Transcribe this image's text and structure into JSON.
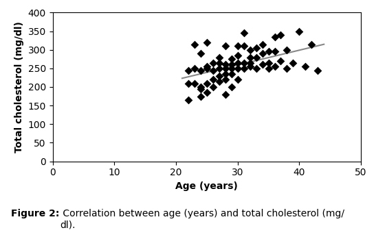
{
  "chart_data": {
    "type": "scatter",
    "x_label": "Age (years)",
    "y_label": "Total cholesterol (mg/dl)",
    "annotations": [
      "Figure 2:",
      " Correlation between age (years) and total cholesterol (mg/\ndl)."
    ],
    "series": [
      {
        "type": "scatter",
        "color": "black",
        "marker": "D",
        "x": [
          22,
          22,
          22,
          23,
          23,
          23,
          24,
          24,
          24,
          24,
          24,
          25,
          25,
          25,
          25,
          25,
          26,
          26,
          26,
          26,
          27,
          27,
          27,
          27,
          27,
          28,
          28,
          28,
          28,
          28,
          28,
          29,
          29,
          29,
          29,
          29,
          30,
          30,
          30,
          30,
          30,
          31,
          31,
          31,
          31,
          32,
          32,
          32,
          32,
          33,
          33,
          33,
          34,
          34,
          34,
          35,
          35,
          35,
          36,
          36,
          36,
          37,
          37,
          38,
          38,
          39,
          40,
          41,
          42,
          43
        ],
        "values": [
          245,
          210,
          165,
          315,
          210,
          250,
          245,
          200,
          195,
          175,
          290,
          255,
          250,
          210,
          185,
          320,
          265,
          245,
          220,
          200,
          265,
          250,
          230,
          215,
          280,
          260,
          250,
          235,
          220,
          180,
          310,
          275,
          260,
          250,
          235,
          200,
          265,
          250,
          220,
          285,
          310,
          265,
          250,
          310,
          345,
          265,
          255,
          280,
          300,
          280,
          250,
          305,
          260,
          290,
          315,
          250,
          265,
          295,
          255,
          295,
          335,
          270,
          340,
          250,
          300,
          265,
          350,
          255,
          315,
          245
        ]
      },
      {
        "type": "line",
        "color": "#888888",
        "line_style": "solid",
        "x": [
          21,
          44
        ],
        "values": [
          223.33,
          314.77
        ]
      }
    ],
    "xlim": [
      0,
      50
    ],
    "xticks": [
      0,
      10,
      20,
      30,
      40,
      50
    ],
    "ylim": [
      0,
      400
    ],
    "yticks": [
      0,
      50,
      100,
      150,
      200,
      250,
      300,
      350,
      400
    ],
    "grid": false
  }
}
